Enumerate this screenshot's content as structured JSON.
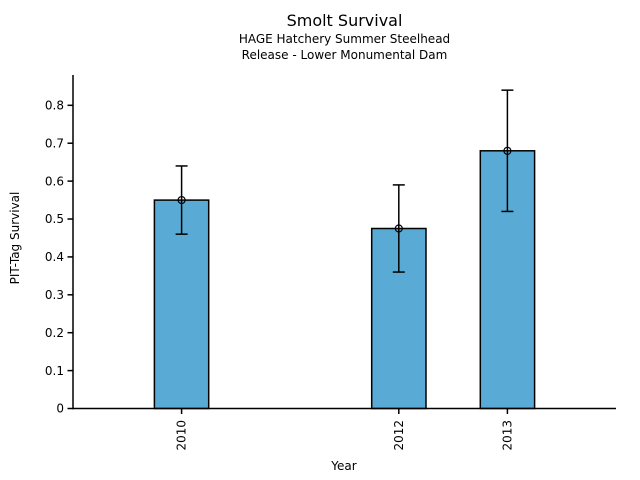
{
  "header": {
    "title": "Smolt Survival",
    "subtitle_line1": "HAGE Hatchery Summer Steelhead",
    "subtitle_line2": "Release - Lower Monumental Dam"
  },
  "axes": {
    "xlabel": "Year",
    "ylabel": "PIT-Tag Survival"
  },
  "chart_data": {
    "type": "bar",
    "title": "Smolt Survival",
    "subtitle": [
      "HAGE Hatchery Summer Steelhead",
      "Release - Lower Monumental Dam"
    ],
    "xlabel": "Year",
    "ylabel": "PIT-Tag Survival",
    "categories": [
      "2010",
      "2012",
      "2013"
    ],
    "x": [
      2010,
      2012,
      2013
    ],
    "values": [
      0.55,
      0.475,
      0.68
    ],
    "error_low": [
      0.46,
      0.36,
      0.52
    ],
    "error_high": [
      0.64,
      0.59,
      0.84
    ],
    "bar_width_years": 0.5,
    "xlim": [
      2009,
      2014
    ],
    "ylim": [
      0,
      0.88
    ],
    "yticks": [
      0,
      0.1,
      0.2,
      0.3,
      0.4,
      0.5,
      0.6,
      0.7,
      0.8
    ],
    "ytick_labels": [
      "0",
      "0.1",
      "0.2",
      "0.3",
      "0.4",
      "0.5",
      "0.6",
      "0.7",
      "0.8"
    ],
    "grid": false,
    "legend": "none",
    "marker": "open-circle",
    "colors": {
      "bar_fill": "#59ABD5",
      "bar_edge": "#000000",
      "error_bar": "#000000",
      "text": "#000000",
      "background": "#FFFFFF"
    }
  }
}
